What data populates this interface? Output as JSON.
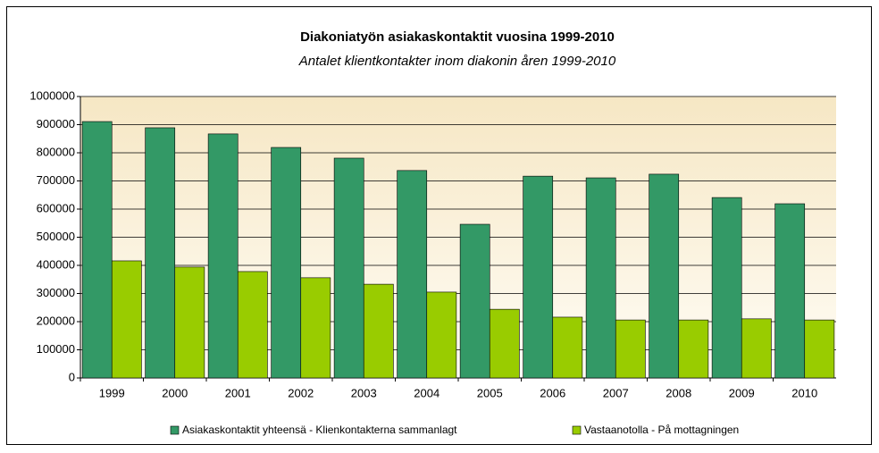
{
  "chart_data": {
    "type": "bar",
    "title": "Diakoniatyön asiakaskontaktit vuosina 1999-2010",
    "subtitle": "Antalet klientkontakter inom diakonin åren 1999-2010",
    "categories": [
      "1999",
      "2000",
      "2001",
      "2002",
      "2003",
      "2004",
      "2005",
      "2006",
      "2007",
      "2008",
      "2009",
      "2010"
    ],
    "series": [
      {
        "name": "Asiakaskontaktit yhteensä - Klienkontakterna sammanlagt",
        "color": "#339966",
        "values": [
          911000,
          889000,
          867000,
          819000,
          781000,
          737000,
          546000,
          717000,
          711000,
          724000,
          641000,
          619000
        ]
      },
      {
        "name": "Vastaanotolla - På mottagningen",
        "color": "#99cc00",
        "values": [
          416000,
          394000,
          378000,
          356000,
          333000,
          305000,
          244000,
          216000,
          206000,
          206000,
          210000,
          206000
        ]
      }
    ],
    "ylim": [
      0,
      1000000
    ],
    "yticks": [
      0,
      100000,
      200000,
      300000,
      400000,
      500000,
      600000,
      700000,
      800000,
      900000,
      1000000
    ],
    "grid": true,
    "legend": "bottom"
  }
}
